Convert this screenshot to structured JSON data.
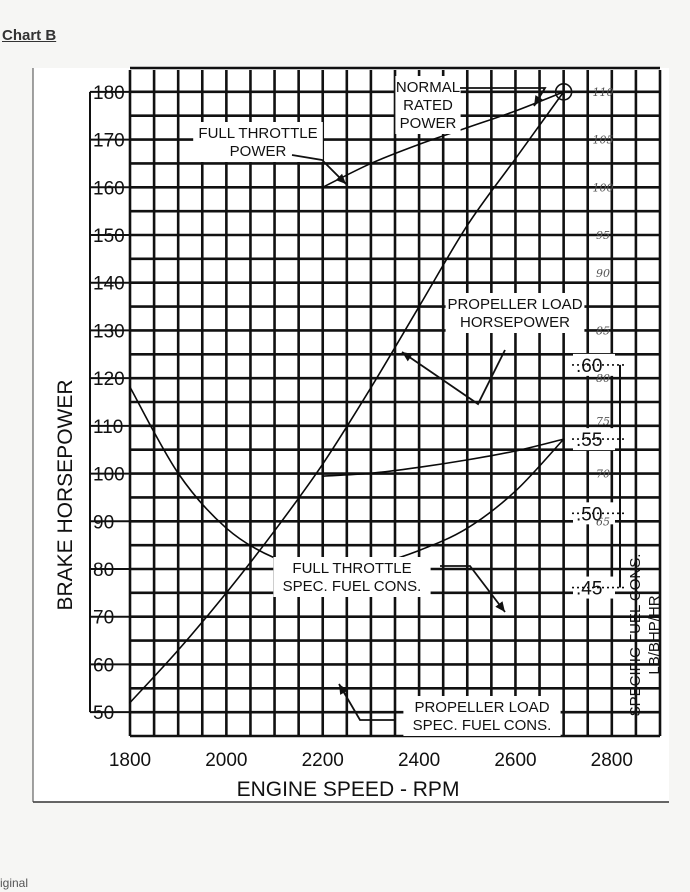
{
  "page": {
    "title": "Chart B",
    "corner_text": "iginal"
  },
  "chart_data": {
    "type": "line",
    "title": "",
    "xlabel": "ENGINE SPEED - RPM",
    "ylabel": "BRAKE HORSEPOWER",
    "y2label": [
      "SPECIFIC FUEL CONS.",
      "LB/BHP/HR"
    ],
    "xlim": [
      1800,
      2900
    ],
    "ylim": [
      45,
      185
    ],
    "y2lim": [
      0.35,
      0.8
    ],
    "grid": true,
    "x_ticks": [
      "1800",
      "2000",
      "2200",
      "2400",
      "2600",
      "2800"
    ],
    "x_tick_values": [
      1800,
      2000,
      2200,
      2400,
      2600,
      2800
    ],
    "y_ticks": [
      "50",
      "60",
      "70",
      "80",
      "90",
      "100",
      "110",
      "120",
      "130",
      "140",
      "150",
      "160",
      "170",
      "180"
    ],
    "y_tick_values": [
      50,
      60,
      70,
      80,
      90,
      100,
      110,
      120,
      130,
      140,
      150,
      160,
      170,
      180
    ],
    "y2_ticks": [
      ".45",
      ".50",
      ".55",
      ".60"
    ],
    "y2_tick_values": [
      0.45,
      0.5,
      0.55,
      0.6
    ],
    "handwritten_marks": [
      {
        "text": "110",
        "y": 180
      },
      {
        "text": "105",
        "y": 170
      },
      {
        "text": "100",
        "y": 160
      },
      {
        "text": "95",
        "y": 150
      },
      {
        "text": "90",
        "y": 142
      },
      {
        "text": "85",
        "y": 130
      },
      {
        "text": "80",
        "y": 120
      },
      {
        "text": "75",
        "y": 111
      },
      {
        "text": "70",
        "y": 100
      },
      {
        "text": "65",
        "y": 90
      }
    ],
    "series": [
      {
        "label_lines": [
          "FULL THROTTLE",
          "POWER"
        ],
        "axis": "left",
        "x": [
          2200,
          2300,
          2400,
          2500,
          2600,
          2700
        ],
        "y": [
          160,
          165,
          169,
          172.5,
          176,
          180
        ]
      },
      {
        "label_lines": [
          "PROPELLER LOAD",
          "HORSEPOWER"
        ],
        "axis": "left",
        "x": [
          1800,
          1900,
          2000,
          2100,
          2200,
          2300,
          2400,
          2500,
          2600,
          2700
        ],
        "y": [
          52,
          63,
          75,
          88,
          102,
          118,
          135,
          152,
          166,
          180
        ]
      },
      {
        "label_lines": [
          "FULL THROTTLE",
          "SPEC. FUEL CONS."
        ],
        "axis": "right",
        "x": [
          2200,
          2300,
          2400,
          2500,
          2600,
          2700
        ],
        "y": [
          0.525,
          0.527,
          0.531,
          0.536,
          0.542,
          0.55
        ]
      },
      {
        "label_lines": [
          "PROPELLER LOAD",
          "SPEC. FUEL CONS."
        ],
        "axis": "right",
        "x": [
          1800,
          1900,
          2000,
          2100,
          2200,
          2300,
          2400,
          2500,
          2600,
          2700
        ],
        "y": [
          0.585,
          0.527,
          0.49,
          0.47,
          0.462,
          0.465,
          0.475,
          0.49,
          0.515,
          0.55
        ]
      }
    ],
    "annotations": [
      {
        "lines": [
          "NORMAL",
          "RATED",
          "POWER"
        ],
        "x": 2700,
        "y": 180
      }
    ]
  }
}
